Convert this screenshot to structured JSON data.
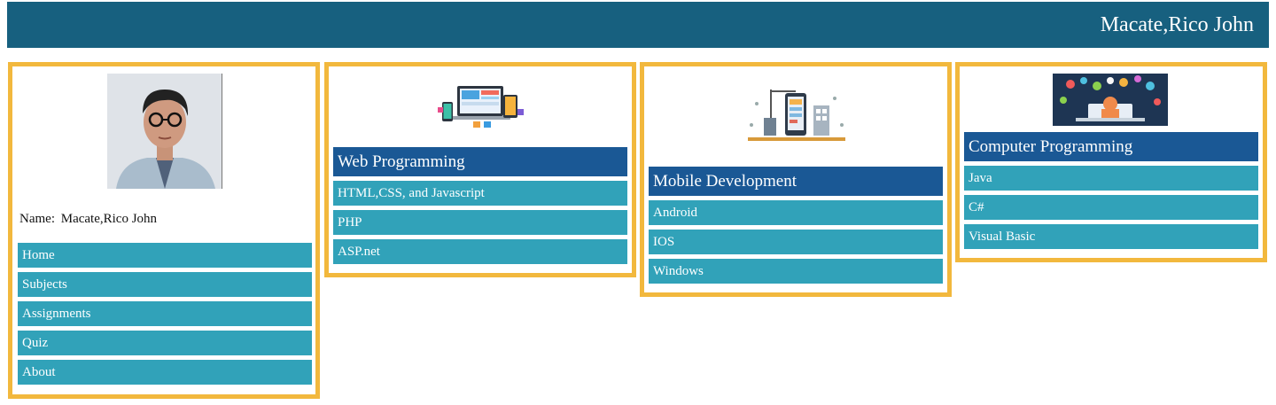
{
  "header": {
    "title": "Macate,Rico John"
  },
  "profile": {
    "name_label": "Name:",
    "name_value": "Macate,Rico John",
    "nav": [
      "Home",
      "Subjects",
      "Assignments",
      "Quiz",
      "About"
    ]
  },
  "subjects": [
    {
      "title": "Web Programming",
      "items": [
        "HTML,CSS, and Javascript",
        "PHP",
        "ASP.net"
      ]
    },
    {
      "title": "Mobile Development",
      "items": [
        "Android",
        "IOS",
        "Windows"
      ]
    },
    {
      "title": "Computer Programming",
      "items": [
        "Java",
        "C#",
        "Visual Basic"
      ]
    }
  ],
  "colors": {
    "header_bg": "#17607f",
    "panel_border": "#f2b83d",
    "subject_header_bg": "#1a5895",
    "item_bg": "#31a2b9"
  }
}
